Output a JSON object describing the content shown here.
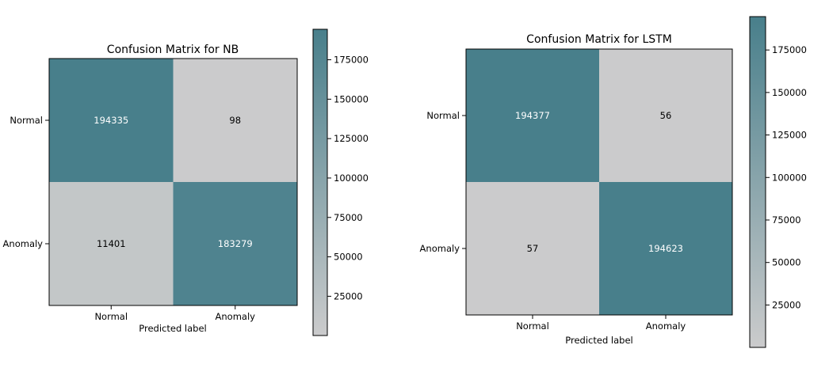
{
  "colors": {
    "high": "#487f8b",
    "low": "#cbcbcc",
    "text_on_high": "#ffffff",
    "text_on_low": "#000000"
  },
  "chart_data": [
    {
      "type": "heatmap",
      "title": "Confusion Matrix for NB",
      "xlabel": "Predicted label",
      "ylabel": "",
      "x_categories": [
        "Normal",
        "Anomaly"
      ],
      "y_categories": [
        "Normal",
        "Anomaly"
      ],
      "values": [
        [
          194335,
          98
        ],
        [
          11401,
          183279
        ]
      ],
      "colorbar": {
        "range": [
          98,
          194335
        ],
        "ticks": [
          25000,
          50000,
          75000,
          100000,
          125000,
          150000,
          175000
        ]
      },
      "grid": false
    },
    {
      "type": "heatmap",
      "title": "Confusion Matrix for LSTM",
      "xlabel": "Predicted label",
      "ylabel": "",
      "x_categories": [
        "Normal",
        "Anomaly"
      ],
      "y_categories": [
        "Normal",
        "Anomaly"
      ],
      "values": [
        [
          194377,
          56
        ],
        [
          57,
          194623
        ]
      ],
      "colorbar": {
        "range": [
          56,
          194623
        ],
        "ticks": [
          25000,
          50000,
          75000,
          100000,
          125000,
          150000,
          175000
        ]
      },
      "grid": false
    }
  ]
}
